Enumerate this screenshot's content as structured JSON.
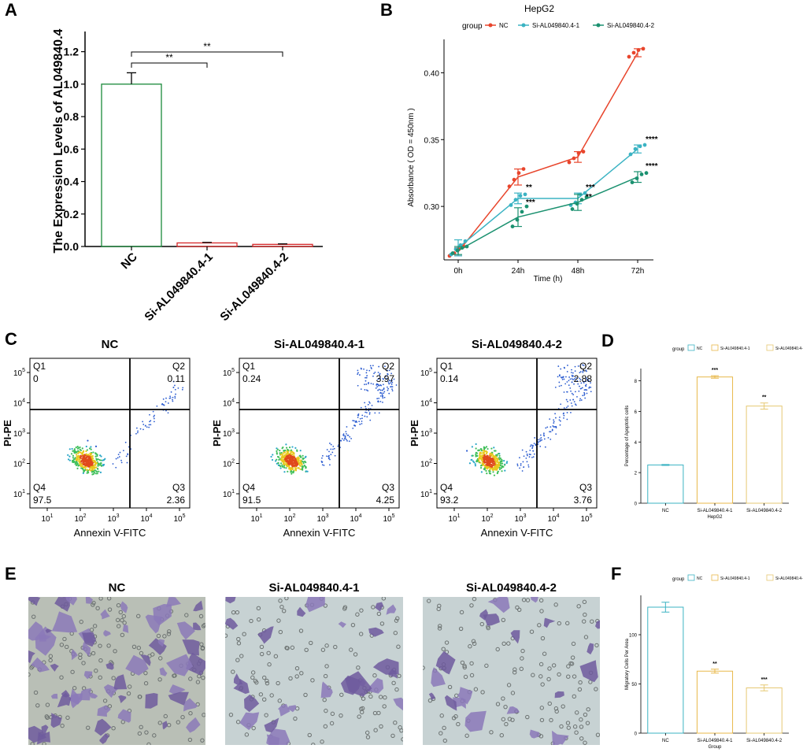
{
  "panels": {
    "a": {
      "label": "A",
      "chart_data": {
        "type": "bar",
        "categories": [
          "NC",
          "Si-AL049840.4-1",
          "Si-AL049840.4-2"
        ],
        "values": [
          1.0,
          0.022,
          0.013
        ],
        "errors": [
          0.07,
          0.003,
          0.003
        ],
        "bar_colors": [
          "#1a8a3a",
          "#d62728",
          "#d62728"
        ],
        "ylabel": "The Expression Levels of AL049840.4",
        "ylim": [
          0,
          1.3
        ],
        "yticks": [
          "0.0",
          "0.2",
          "0.4",
          "0.6",
          "0.8",
          "1.0",
          "1.2"
        ],
        "brackets": [
          {
            "from": 0,
            "to": 1,
            "label": "**"
          },
          {
            "from": 0,
            "to": 2,
            "label": "**"
          }
        ]
      }
    },
    "b": {
      "label": "B",
      "chart_data": {
        "type": "line",
        "title": "HepG2",
        "legend_title": "group",
        "legend_position": "top",
        "xlabel": "Time (h)",
        "ylabel": "Absorbance ( OD = 450nm )",
        "x": [
          "0h",
          "24h",
          "48h",
          "72h"
        ],
        "ylim": [
          0.26,
          0.425
        ],
        "yticks": [
          "0.30",
          "0.35",
          "0.40"
        ],
        "series": [
          {
            "name": "NC",
            "color": "#e8452c",
            "values": [
              0.266,
              0.322,
              0.337,
              0.415
            ],
            "errors": [
              0.003,
              0.006,
              0.004,
              0.003
            ],
            "points": [
              [
                0.263,
                0.265,
                0.268,
                0.27
              ],
              [
                0.315,
                0.32,
                0.325,
                0.328
              ],
              [
                0.333,
                0.336,
                0.34,
                0.341
              ],
              [
                0.412,
                0.415,
                0.417,
                0.418
              ]
            ],
            "labels": [
              "",
              "",
              "",
              ""
            ]
          },
          {
            "name": "Si-AL049840.4-1",
            "color": "#3bb3c3",
            "values": [
              0.269,
              0.306,
              0.306,
              0.343
            ],
            "errors": [
              0.006,
              0.004,
              0.004,
              0.003
            ],
            "points": [
              [
                0.264,
                0.268,
                0.271,
                0.274
              ],
              [
                0.301,
                0.305,
                0.308,
                0.309
              ],
              [
                0.301,
                0.303,
                0.309,
                0.31
              ],
              [
                0.339,
                0.343,
                0.345,
                0.346
              ]
            ],
            "labels": [
              "",
              "**",
              "***",
              "****"
            ]
          },
          {
            "name": "Si-AL049840.4-2",
            "color": "#1b9170",
            "values": [
              0.267,
              0.292,
              0.303,
              0.322
            ],
            "errors": [
              0.003,
              0.007,
              0.006,
              0.004
            ],
            "points": [
              [
                0.265,
                0.267,
                0.269,
                0.27
              ],
              [
                0.285,
                0.29,
                0.296,
                0.3
              ],
              [
                0.298,
                0.302,
                0.305,
                0.307
              ],
              [
                0.318,
                0.321,
                0.324,
                0.325
              ]
            ],
            "labels": [
              "",
              "***",
              "**",
              "****"
            ]
          }
        ]
      }
    },
    "c": {
      "label": "C",
      "y_axis_label": "PI-PE",
      "x_axis_label": "Annexin V-FITC",
      "ytick_exponents": [
        "1",
        "2",
        "3",
        "4",
        "5"
      ],
      "xtick_exponents": [
        "1",
        "2",
        "3",
        "4",
        "5"
      ],
      "base": "10",
      "plots": [
        {
          "title": "NC",
          "q1": {
            "name": "Q1",
            "value": "0"
          },
          "q2": {
            "name": "Q2",
            "value": "0.11"
          },
          "q3": {
            "name": "Q3",
            "value": "2.36"
          },
          "q4": {
            "name": "Q4",
            "value": "97.5"
          }
        },
        {
          "title": "Si-AL049840.4-1",
          "q1": {
            "name": "Q1",
            "value": "0.24"
          },
          "q2": {
            "name": "Q2",
            "value": "3.97"
          },
          "q3": {
            "name": "Q3",
            "value": "4.25"
          },
          "q4": {
            "name": "Q4",
            "value": "91.5"
          }
        },
        {
          "title": "Si-AL049840.4-2",
          "q1": {
            "name": "Q1",
            "value": "0.14"
          },
          "q2": {
            "name": "Q2",
            "value": "2.88"
          },
          "q3": {
            "name": "Q3",
            "value": "3.76"
          },
          "q4": {
            "name": "Q4",
            "value": "93.2"
          }
        }
      ]
    },
    "d": {
      "label": "D",
      "chart_data": {
        "type": "bar",
        "legend_title": "group",
        "legend_position": "top",
        "categories": [
          "NC",
          "Si-AL049840.4-1",
          "Si-AL049840.4-2"
        ],
        "values": [
          2.5,
          8.25,
          6.35
        ],
        "errors": [
          0.03,
          0.08,
          0.2
        ],
        "bar_colors": [
          "#3bb3c3",
          "#e8b84a",
          "#e6c873"
        ],
        "ylabel": "Percentage of Apoptotic cells",
        "xlabel": "HepG2",
        "ylim": [
          0,
          8.8
        ],
        "yticks": [
          "0",
          "2",
          "4",
          "6",
          "8"
        ],
        "sig_labels": [
          "",
          "***",
          "**"
        ]
      }
    },
    "e": {
      "label": "E",
      "titles": [
        "NC",
        "Si-AL049840.4-1",
        "Si-AL049840.4-2"
      ]
    },
    "f": {
      "label": "F",
      "chart_data": {
        "type": "bar",
        "legend_title": "group",
        "legend_position": "top",
        "categories": [
          "NC",
          "Si-AL049840.4-1",
          "Si-AL049840.4-2"
        ],
        "values": [
          128,
          63,
          46
        ],
        "errors": [
          5,
          2,
          3
        ],
        "bar_colors": [
          "#3bb3c3",
          "#e8b84a",
          "#e6c873"
        ],
        "ylabel": "Migratory Cells Per Area",
        "xlabel": "Group",
        "ylim": [
          0,
          140
        ],
        "yticks": [
          "0",
          "50",
          "100"
        ],
        "sig_labels": [
          "",
          "**",
          "***"
        ]
      }
    }
  }
}
